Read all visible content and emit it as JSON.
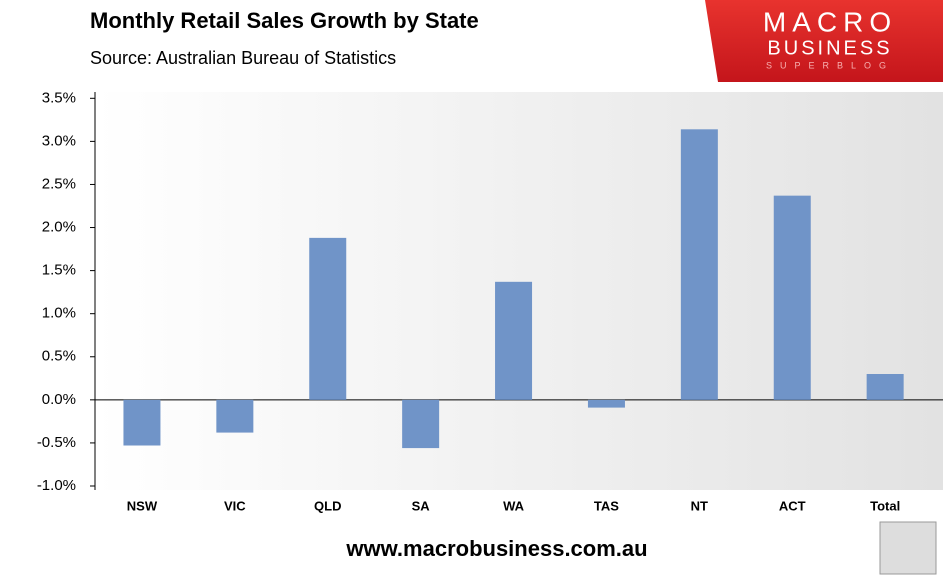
{
  "chart_data": {
    "type": "bar",
    "title": "Monthly Retail Sales Growth by State",
    "subtitle": "Source: Australian Bureau of Statistics",
    "categories": [
      "NSW",
      "VIC",
      "QLD",
      "SA",
      "WA",
      "TAS",
      "NT",
      "ACT",
      "Total"
    ],
    "values": [
      -0.53,
      -0.38,
      1.88,
      -0.56,
      1.37,
      -0.09,
      3.14,
      2.37,
      0.3
    ],
    "color": "#7094c8",
    "ylim": [
      -1,
      3.5
    ],
    "yticks": [
      {
        "value": -1,
        "label": "-1.0%"
      },
      {
        "value": -0.5,
        "label": "-0.5%"
      },
      {
        "value": 0,
        "label": "0.0%"
      },
      {
        "value": 0.5,
        "label": "0.5%"
      },
      {
        "value": 1,
        "label": "1.0%"
      },
      {
        "value": 1.5,
        "label": "1.5%"
      },
      {
        "value": 2,
        "label": "2.0%"
      },
      {
        "value": 2.5,
        "label": "2.5%"
      },
      {
        "value": 3,
        "label": "3.0%"
      },
      {
        "value": 3.5,
        "label": "3.5%"
      }
    ],
    "grid": false
  },
  "logo": {
    "name": "MACRO",
    "name2": "BUSINESS",
    "tagline": "SUPERBLOG"
  },
  "footer": "www.macrobusiness.com.au"
}
